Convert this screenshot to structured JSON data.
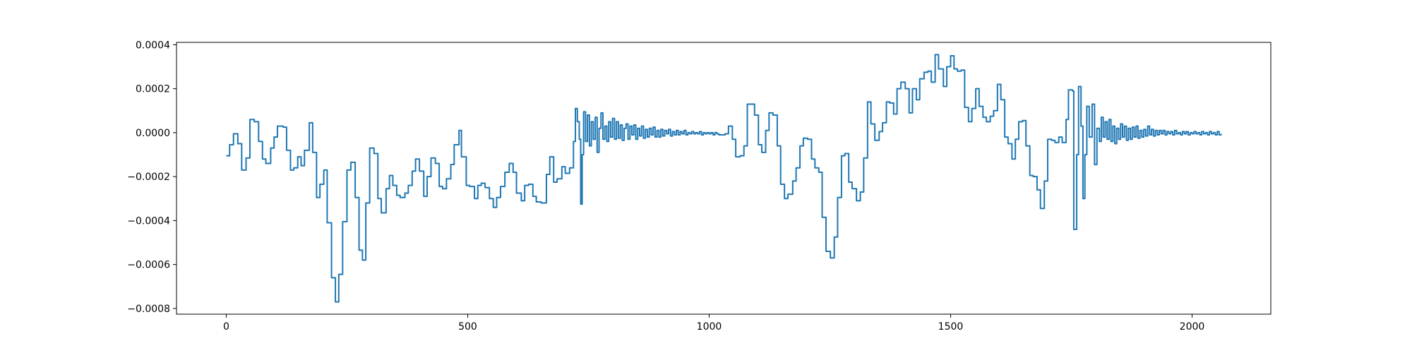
{
  "chart_data": {
    "type": "line",
    "drawstyle": "steps-post",
    "color": "#1f77b4",
    "xlim": [
      -103,
      2163
    ],
    "xticks": [
      0,
      500,
      1000,
      1500,
      2000
    ],
    "ylim": [
      -0.000826,
      0.000411
    ],
    "yticks": [
      {
        "value": -0.0008,
        "label": "−0.0008"
      },
      {
        "value": -0.0006,
        "label": "−0.0006"
      },
      {
        "value": -0.0004,
        "label": "−0.0004"
      },
      {
        "value": -0.0002,
        "label": "−0.0002"
      },
      {
        "value": 0,
        "label": "0.0000"
      },
      {
        "value": 0.0002,
        "label": "0.0002"
      },
      {
        "value": 0.0004,
        "label": "0.0004"
      }
    ],
    "x": [
      0,
      7,
      15,
      24,
      32,
      41,
      49,
      58,
      67,
      75,
      82,
      92,
      99,
      106,
      118,
      125,
      133,
      140,
      148,
      155,
      162,
      172,
      179,
      187,
      194,
      202,
      209,
      218,
      226,
      233,
      241,
      250,
      258,
      267,
      275,
      282,
      289,
      297,
      306,
      314,
      321,
      331,
      338,
      345,
      353,
      360,
      370,
      377,
      385,
      392,
      400,
      409,
      416,
      424,
      433,
      441,
      448,
      456,
      465,
      472,
      482,
      487,
      497,
      504,
      514,
      521,
      528,
      536,
      545,
      553,
      560,
      568,
      577,
      586,
      594,
      601,
      611,
      618,
      626,
      635,
      642,
      652,
      663,
      670,
      678,
      685,
      695,
      702,
      711,
      719,
      723,
      727,
      731,
      734,
      737,
      740,
      744,
      748,
      752,
      756,
      760,
      764,
      768,
      772,
      776,
      780,
      784,
      788,
      792,
      796,
      800,
      804,
      808,
      812,
      816,
      820,
      824,
      828,
      832,
      836,
      840,
      844,
      848,
      852,
      856,
      860,
      864,
      868,
      872,
      876,
      880,
      884,
      888,
      892,
      896,
      900,
      904,
      908,
      912,
      916,
      920,
      924,
      928,
      932,
      936,
      940,
      944,
      948,
      952,
      956,
      960,
      964,
      968,
      972,
      976,
      980,
      984,
      988,
      992,
      996,
      1000,
      1004,
      1008,
      1012,
      1016,
      1020,
      1033,
      1040,
      1048,
      1055,
      1064,
      1072,
      1079,
      1087,
      1094,
      1102,
      1109,
      1117,
      1124,
      1132,
      1141,
      1148,
      1156,
      1163,
      1173,
      1180,
      1188,
      1195,
      1204,
      1212,
      1219,
      1227,
      1234,
      1242,
      1251,
      1259,
      1266,
      1274,
      1281,
      1289,
      1296,
      1305,
      1313,
      1320,
      1328,
      1335,
      1343,
      1352,
      1359,
      1367,
      1374,
      1382,
      1389,
      1397,
      1406,
      1414,
      1421,
      1429,
      1436,
      1445,
      1453,
      1460,
      1468,
      1475,
      1485,
      1492,
      1500,
      1507,
      1514,
      1522,
      1529,
      1537,
      1544,
      1552,
      1559,
      1567,
      1574,
      1582,
      1589,
      1597,
      1604,
      1612,
      1619,
      1627,
      1634,
      1641,
      1649,
      1656,
      1664,
      1671,
      1679,
      1686,
      1694,
      1701,
      1709,
      1716,
      1724,
      1731,
      1739,
      1744,
      1752,
      1755,
      1761,
      1765,
      1770,
      1774,
      1778,
      1782,
      1787,
      1793,
      1798,
      1803,
      1808,
      1812,
      1816,
      1820,
      1824,
      1828,
      1832,
      1836,
      1840,
      1844,
      1848,
      1852,
      1856,
      1860,
      1864,
      1868,
      1872,
      1876,
      1880,
      1884,
      1888,
      1892,
      1896,
      1900,
      1904,
      1908,
      1912,
      1916,
      1920,
      1924,
      1928,
      1932,
      1936,
      1940,
      1944,
      1948,
      1952,
      1956,
      1960,
      1964,
      1968,
      1972,
      1976,
      1980,
      1984,
      1988,
      1992,
      1996,
      2000,
      2004,
      2008,
      2012,
      2016,
      2020,
      2024,
      2028,
      2032,
      2036,
      2040,
      2044,
      2048,
      2052,
      2056,
      2060
    ],
    "values": [
      -0.000105,
      -5.5e-05,
      -5e-06,
      -5e-05,
      -0.00017,
      -0.000115,
      6e-05,
      5e-05,
      -4e-05,
      -0.00012,
      -0.00014,
      -7e-05,
      -2e-05,
      3e-05,
      2.5e-05,
      -8e-05,
      -0.00017,
      -0.00016,
      -0.00011,
      -0.00015,
      -8e-05,
      4.5e-05,
      -9e-05,
      -0.000295,
      -0.000235,
      -0.00017,
      -0.00041,
      -0.00066,
      -0.00077,
      -0.000645,
      -0.000405,
      -0.00017,
      -0.000135,
      -0.000295,
      -0.000535,
      -0.00058,
      -0.00032,
      -7e-05,
      -9.5e-05,
      -0.0003,
      -0.000365,
      -0.000255,
      -0.000195,
      -0.00024,
      -0.000285,
      -0.000295,
      -0.000275,
      -0.00024,
      -0.000175,
      -0.00012,
      -0.000175,
      -0.00029,
      -0.0002,
      -0.000115,
      -0.00014,
      -0.000245,
      -0.000255,
      -0.00021,
      -0.000145,
      -5.5e-05,
      1e-05,
      -0.00011,
      -0.00024,
      -0.000245,
      -0.0003,
      -0.00024,
      -0.00023,
      -0.00025,
      -0.0003,
      -0.00034,
      -0.000295,
      -0.000245,
      -0.00018,
      -0.00014,
      -0.00018,
      -0.000275,
      -0.00031,
      -0.00024,
      -0.000235,
      -0.00029,
      -0.000315,
      -0.00032,
      -0.00019,
      -0.00011,
      -0.000225,
      -0.00021,
      -0.000155,
      -0.000185,
      -0.00016,
      -4e-05,
      0.00011,
      5e-05,
      -3e-05,
      -0.000325,
      -0.0001,
      9.5e-05,
      -4e-05,
      8e-05,
      -6e-05,
      5e-05,
      -3e-05,
      7e-05,
      -9e-05,
      2e-05,
      9e-05,
      -3e-05,
      3e-05,
      -4e-05,
      5e-05,
      -2e-05,
      6.5e-05,
      -3e-05,
      5e-05,
      -2.5e-05,
      3.5e-05,
      -3.5e-05,
      2e-05,
      4e-05,
      -3e-05,
      3e-05,
      -1e-05,
      3.5e-05,
      -3e-05,
      2e-05,
      -1.5e-05,
      3e-05,
      -2.5e-05,
      1.5e-05,
      -2e-05,
      2e-05,
      -1e-05,
      2.5e-05,
      -2e-05,
      1e-05,
      -2e-05,
      1.5e-05,
      -1.5e-05,
      1e-05,
      -5e-06,
      1.5e-05,
      -1.5e-05,
      5e-06,
      -1e-05,
      1e-05,
      -1e-05,
      5e-06,
      -5e-06,
      1e-05,
      -1e-05,
      0,
      -5e-06,
      5e-06,
      -5e-06,
      0,
      -5e-06,
      5e-06,
      -1e-05,
      0,
      -5e-06,
      0,
      -5e-06,
      0,
      -1e-05,
      0,
      -5e-06,
      -1e-05,
      -5e-06,
      3e-05,
      -3e-05,
      -0.00011,
      -0.000105,
      -6e-05,
      0.00013,
      0.00013,
      8e-05,
      -5.5e-05,
      -9e-05,
      1e-05,
      9e-05,
      8e-05,
      -6e-05,
      -0.000235,
      -0.0003,
      -0.00028,
      -0.00022,
      -0.00016,
      -6e-05,
      -2.5e-05,
      -3e-05,
      -0.00012,
      -0.00016,
      -0.00018,
      -0.000385,
      -0.00054,
      -0.00057,
      -0.000475,
      -0.000295,
      -0.000105,
      -9.5e-05,
      -0.000225,
      -0.000255,
      -0.00031,
      -0.00027,
      -0.000115,
      0.00014,
      4e-05,
      -3.5e-05,
      5e-06,
      4.5e-05,
      0.00014,
      0.000135,
      8.5e-05,
      0.0002,
      0.00023,
      0.0002,
      9e-05,
      0.0002,
      0.00015,
      0.000245,
      0.000275,
      0.00028,
      0.00023,
      0.000355,
      0.00029,
      0.00021,
      0.0003,
      0.00035,
      0.00029,
      0.00028,
      0.000285,
      0.000115,
      5e-05,
      0.00011,
      0.0002,
      0.00012,
      7e-05,
      5e-05,
      7.5e-05,
      0.0001,
      0.00022,
      0.00015,
      -2e-05,
      -5e-05,
      -0.00012,
      -3e-05,
      5e-05,
      5.5e-05,
      -6e-05,
      -0.000195,
      -0.0002,
      -0.00026,
      -0.000345,
      -0.00022,
      -3e-05,
      -3.5e-05,
      -4.5e-05,
      -2e-05,
      -4.5e-05,
      6e-05,
      0.000195,
      0.00019,
      -0.00044,
      -0.0001,
      0.00021,
      3e-05,
      -0.0003,
      -0.0001,
      0.00012,
      -2e-05,
      0.00013,
      -0.000145,
      2e-05,
      -4e-05,
      7e-05,
      -2e-05,
      5e-05,
      -3e-05,
      6e-05,
      -4e-05,
      3e-05,
      -5e-05,
      2e-05,
      -3e-05,
      4e-05,
      -2e-05,
      3e-05,
      -3.5e-05,
      2e-05,
      -3e-05,
      2.5e-05,
      -2e-05,
      3e-05,
      -2.5e-05,
      1e-05,
      -2e-05,
      1.5e-05,
      -1.5e-05,
      3e-05,
      -1e-05,
      1.5e-05,
      -1.5e-05,
      1e-05,
      -1e-05,
      1e-05,
      -5e-06,
      1e-05,
      -1e-05,
      5e-06,
      -5e-06,
      5e-06,
      -1e-05,
      1e-05,
      -5e-06,
      0,
      -1e-05,
      5e-06,
      -5e-06,
      5e-06,
      -1e-05,
      0,
      -5e-06,
      5e-06,
      -5e-06,
      0,
      -1e-05,
      5e-06,
      -5e-06,
      0,
      -1e-05,
      5e-06,
      -5e-06,
      0,
      -1e-05,
      5e-06,
      -1e-05,
      -5e-06
    ]
  }
}
